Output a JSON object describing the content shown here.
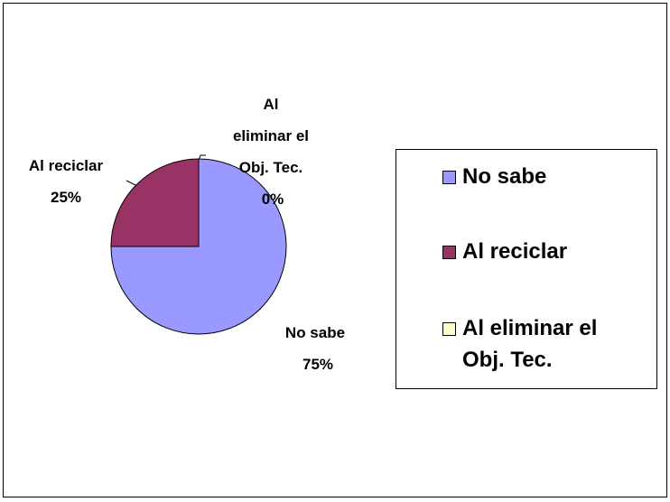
{
  "chart_data": {
    "type": "pie",
    "categories": [
      "No sabe",
      "Al reciclar",
      "Al eliminar el Obj. Tec."
    ],
    "values": [
      75,
      25,
      0
    ],
    "value_labels": [
      "75%",
      "25%",
      "0%"
    ],
    "colors": [
      "#9999ff",
      "#993366",
      "#ffffcc"
    ],
    "legend": "right"
  }
}
